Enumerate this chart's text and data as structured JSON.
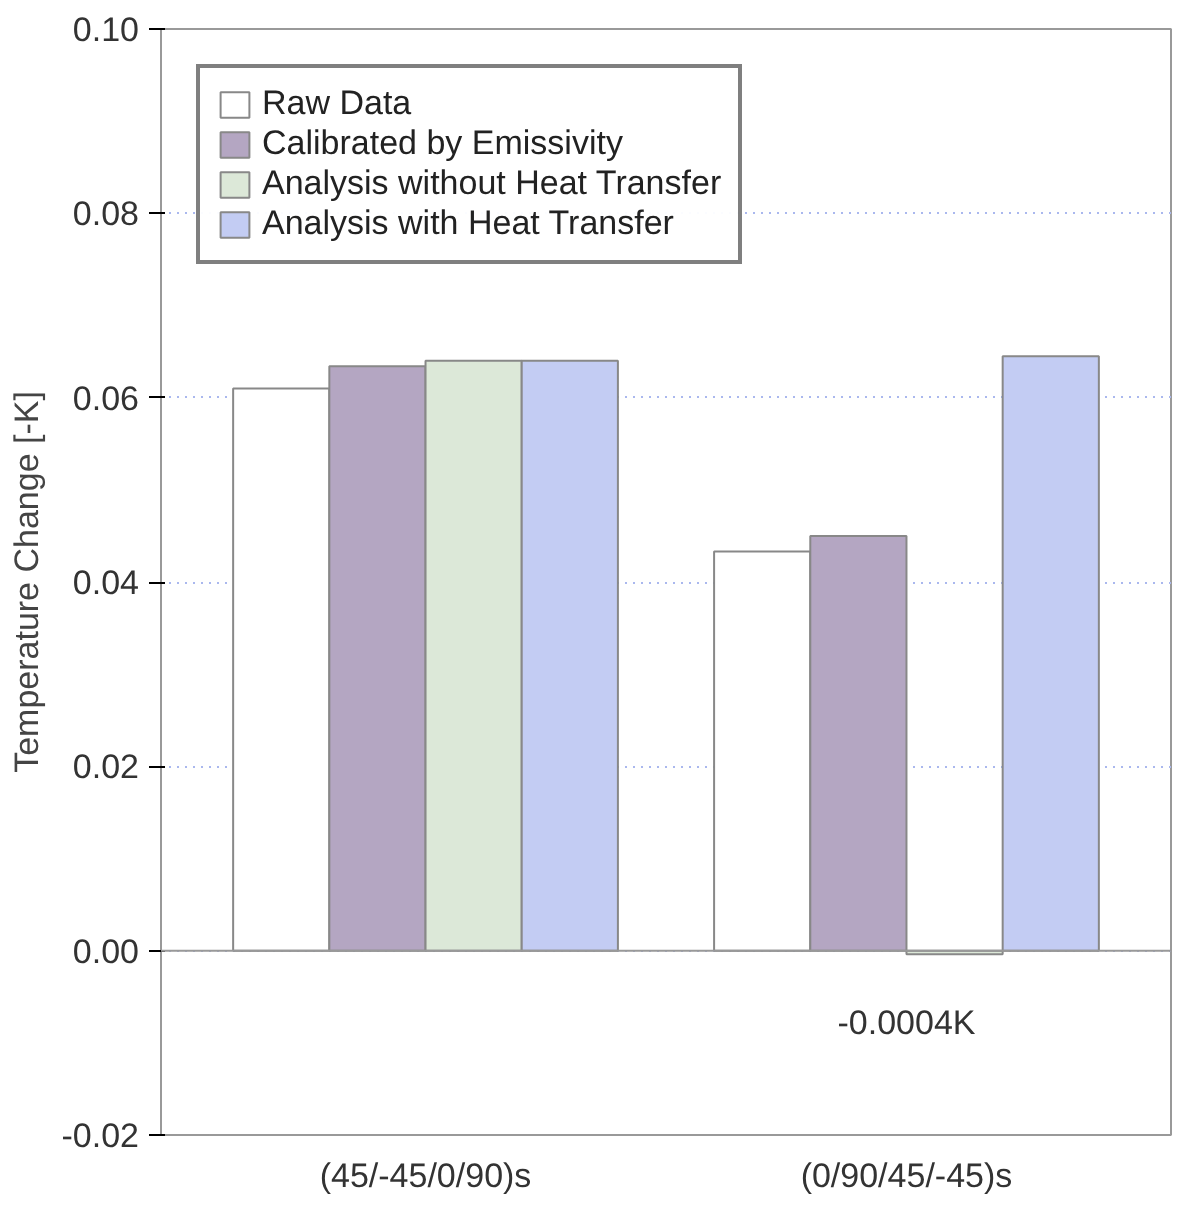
{
  "chart_data": {
    "type": "bar",
    "ylabel": "Temperature Change [-K]",
    "categories": [
      "(45/-45/0/90)s",
      "(0/90/45/-45)s"
    ],
    "series": [
      {
        "name": "Raw Data",
        "color": "#ffffff",
        "values": [
          0.061,
          0.0433
        ]
      },
      {
        "name": "Calibrated by Emissivity",
        "color": "#b4a6c2",
        "values": [
          0.0634,
          0.045
        ]
      },
      {
        "name": "Analysis without Heat Transfer",
        "color": "#dce8d8",
        "values": [
          0.064,
          -0.0004
        ]
      },
      {
        "name": "Analysis with Heat Transfer",
        "color": "#c3ccf3",
        "values": [
          0.064,
          0.0645
        ]
      }
    ],
    "ylim": [
      -0.02,
      0.1
    ],
    "yticks": [
      {
        "value": -0.02,
        "label": "-0.02"
      },
      {
        "value": 0,
        "label": "0.00"
      },
      {
        "value": 0.02,
        "label": "0.02"
      },
      {
        "value": 0.04,
        "label": "0.04"
      },
      {
        "value": 0.06,
        "label": "0.06"
      },
      {
        "value": 0.08,
        "label": "0.08"
      },
      {
        "value": 0.1,
        "label": "0.10"
      }
    ],
    "annotations": [
      {
        "text": "-0.0004K",
        "x": "(0/90/45/-45)s",
        "y": -0.0004
      }
    ],
    "grid": "y",
    "legend": "top left"
  }
}
